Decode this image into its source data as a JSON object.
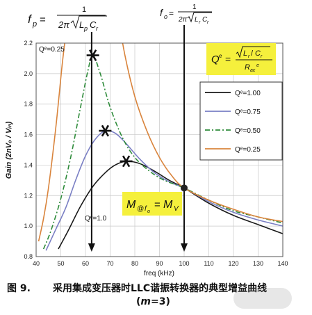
{
  "chart_data": {
    "type": "line",
    "xlabel": "freq (kHz)",
    "ylabel": "Gain (2nVₒ / Vᵢₙ)",
    "xlim": [
      40,
      140
    ],
    "ylim": [
      0.8,
      2.2
    ],
    "x_ticks": [
      "40",
      "50",
      "60",
      "70",
      "80",
      "90",
      "100",
      "110",
      "120",
      "130",
      "140"
    ],
    "y_ticks": [
      "0.8",
      "1.0",
      "1.2",
      "1.4",
      "1.6",
      "1.8",
      "2.0",
      "2.2"
    ],
    "grid": true,
    "legend_position": "right",
    "series": [
      {
        "name": "Qᵉ=1.00",
        "color": "#1a1a1a",
        "dash": "",
        "x": [
          49,
          53,
          58,
          63,
          68,
          72,
          76.5,
          82,
          88,
          94,
          100,
          110,
          120,
          130,
          140
        ],
        "y": [
          0.85,
          0.97,
          1.13,
          1.26,
          1.35,
          1.4,
          1.425,
          1.41,
          1.36,
          1.3,
          1.25,
          1.15,
          1.07,
          1.01,
          0.95
        ]
      },
      {
        "name": "Qᵉ=0.75",
        "color": "#7a7fc4",
        "dash": "",
        "x": [
          44,
          48,
          52,
          56,
          60,
          64,
          68,
          72,
          76,
          82,
          88,
          94,
          100,
          110,
          120,
          130,
          140
        ],
        "y": [
          0.84,
          0.98,
          1.12,
          1.3,
          1.46,
          1.57,
          1.625,
          1.61,
          1.55,
          1.44,
          1.35,
          1.29,
          1.25,
          1.16,
          1.09,
          1.04,
          1.0
        ]
      },
      {
        "name": "Qᵉ=0.50",
        "color": "#2e8b3a",
        "dash": "7,3,2,3",
        "x": [
          43,
          46,
          50,
          54,
          58,
          61,
          63,
          66,
          70,
          75,
          80,
          86,
          92,
          100,
          110,
          120,
          130,
          140
        ],
        "y": [
          0.85,
          0.97,
          1.18,
          1.45,
          1.78,
          2.02,
          2.12,
          2.0,
          1.78,
          1.58,
          1.45,
          1.36,
          1.3,
          1.25,
          1.17,
          1.1,
          1.06,
          1.02
        ]
      },
      {
        "name": "Qᵉ=0.25",
        "color": "#d9843c",
        "dash": "",
        "x": [
          41,
          43,
          45,
          48,
          50.5,
          52,
          53.5
        ],
        "y": [
          0.9,
          1.05,
          1.25,
          1.65,
          2.05,
          2.25,
          2.4
        ],
        "x2": [
          73,
          76,
          80,
          85,
          90,
          95,
          100,
          110,
          120,
          130,
          140
        ],
        "y2": [
          2.4,
          2.12,
          1.85,
          1.62,
          1.45,
          1.33,
          1.25,
          1.17,
          1.11,
          1.06,
          1.03
        ]
      }
    ],
    "vertical_markers": [
      {
        "label_left": "f",
        "label_sub": "p",
        "x": 62.5
      },
      {
        "label_left": "f",
        "label_sub": "o",
        "x": 100
      }
    ],
    "peaks": [
      {
        "series": "Qᵉ=0.50",
        "x": 63,
        "y": 2.12
      },
      {
        "series": "Qᵉ=0.75",
        "x": 68,
        "y": 1.625
      },
      {
        "series": "Qᵉ=1.00",
        "x": 76.5,
        "y": 1.425
      }
    ],
    "intersection": {
      "x": 100,
      "y": 1.25
    },
    "annotations": {
      "qe_025": "Qᵉ=0.25",
      "qe_10": "Qᵉ=1.0",
      "fp_formula": "fₚ = 1 / (2π√(LₚCᵣ))",
      "fo_formula": "fₒ = 1 / (2π√(LᵣCᵣ))",
      "qe_formula": "Qᵉ = √(Lᵣ / Cᵣ) / Rₐᶜᵉ",
      "m_formula": "M@fₒ = Mᵥ"
    }
  },
  "caption": {
    "number": "图 9.",
    "title": "采用集成变压器时LLC谐振转换器的典型增益曲线",
    "param_prefix": "(",
    "param_m": "m",
    "param_suffix": "=3)"
  },
  "colors": {
    "highlight": "#f5f03c",
    "grid": "#c8c8c8"
  }
}
